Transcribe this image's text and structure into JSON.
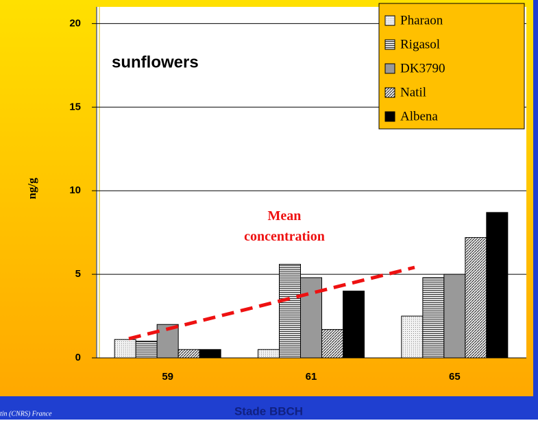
{
  "chart_data": {
    "type": "bar",
    "title": "sunflowers",
    "annotation": "Mean concentration",
    "x_label": "Stade BBCH",
    "y_label": "ng/g",
    "footer": "tin (CNRS) France",
    "categories": [
      "59",
      "61",
      "65"
    ],
    "series": [
      {
        "name": "Pharaon",
        "color": "#e6e6e6",
        "hatch": "dots",
        "values": [
          1.1,
          0.5,
          2.5
        ]
      },
      {
        "name": "Rigasol",
        "color": "#c8c8c8",
        "hatch": "horizontal",
        "values": [
          1.0,
          5.6,
          4.8
        ]
      },
      {
        "name": "DK3790",
        "color": "#999999",
        "hatch": "none",
        "values": [
          2.0,
          4.8,
          5.0
        ]
      },
      {
        "name": "Natil",
        "color": "#d0d0d0",
        "hatch": "diagonal",
        "values": [
          0.5,
          1.7,
          7.2
        ]
      },
      {
        "name": "Albena",
        "color": "#000000",
        "hatch": "none",
        "values": [
          0.5,
          4.0,
          8.7
        ]
      }
    ],
    "ylim": [
      0,
      21
    ],
    "yticks": [
      0,
      5,
      10,
      15,
      20
    ],
    "grid": true,
    "legend": "upper right"
  }
}
